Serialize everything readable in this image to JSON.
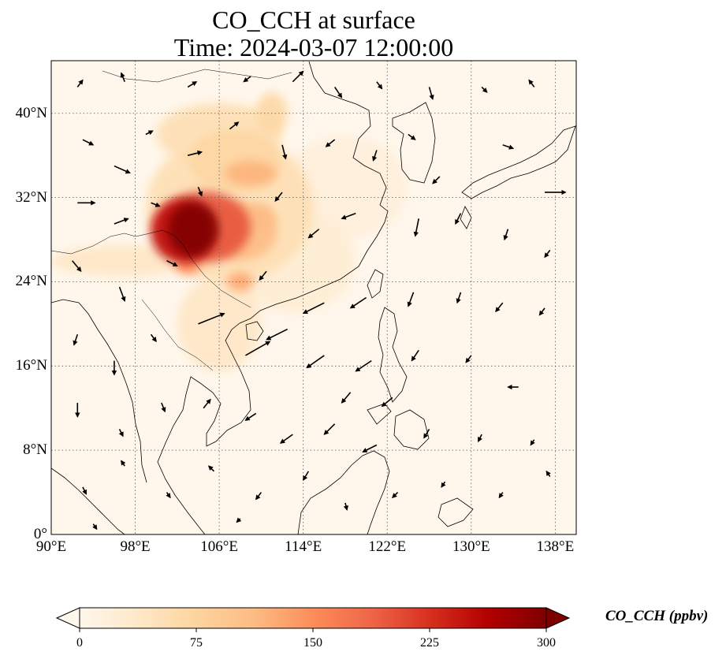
{
  "title": {
    "line1": "CO_CCH at surface",
    "line2": "Time: 2024-03-07 12:00:00"
  },
  "map": {
    "projection": "PlateCarree",
    "lon_range": [
      90,
      140
    ],
    "lat_range": [
      0,
      45
    ],
    "gridlines": "dotted",
    "x_ticks": [
      {
        "lon": 90,
        "label": "90°E"
      },
      {
        "lon": 98,
        "label": "98°E"
      },
      {
        "lon": 106,
        "label": "106°E"
      },
      {
        "lon": 114,
        "label": "114°E"
      },
      {
        "lon": 122,
        "label": "122°E"
      },
      {
        "lon": 130,
        "label": "130°E"
      },
      {
        "lon": 138,
        "label": "138°E"
      }
    ],
    "y_ticks": [
      {
        "lat": 0,
        "label": "0°"
      },
      {
        "lat": 8,
        "label": "8°N"
      },
      {
        "lat": 16,
        "label": "16°N"
      },
      {
        "lat": 24,
        "label": "24°N"
      },
      {
        "lat": 32,
        "label": "32°N"
      },
      {
        "lat": 40,
        "label": "40°N"
      }
    ],
    "colormap": "OrRd",
    "concentration_features": [
      {
        "lon": 103.5,
        "lat": 29.0,
        "value": 300,
        "rx": 2.4,
        "ry": 2.6
      },
      {
        "lon": 102.5,
        "lat": 28.8,
        "value": 250,
        "rx": 3.0,
        "ry": 3.0
      },
      {
        "lon": 104.5,
        "lat": 29.2,
        "value": 200,
        "rx": 4.5,
        "ry": 3.4
      },
      {
        "lon": 108.0,
        "lat": 28.8,
        "value": 110,
        "rx": 3.5,
        "ry": 2.8
      },
      {
        "lon": 109.0,
        "lat": 34.3,
        "value": 120,
        "rx": 2.5,
        "ry": 1.2
      },
      {
        "lon": 110.0,
        "lat": 30.0,
        "value": 110,
        "rx": 1.3,
        "ry": 1.3
      },
      {
        "lon": 107.5,
        "lat": 35.5,
        "value": 70,
        "rx": 4.5,
        "ry": 3.0
      },
      {
        "lon": 106.0,
        "lat": 38.0,
        "value": 55,
        "rx": 6.0,
        "ry": 3.0
      },
      {
        "lon": 107.0,
        "lat": 31.0,
        "value": 55,
        "rx": 8.0,
        "ry": 7.0
      },
      {
        "lon": 111.0,
        "lat": 40.0,
        "value": 70,
        "rx": 1.5,
        "ry": 2.0
      },
      {
        "lon": 103.0,
        "lat": 25.5,
        "value": 150,
        "rx": 1.2,
        "ry": 0.8
      },
      {
        "lon": 108.0,
        "lat": 24.0,
        "value": 130,
        "rx": 1.3,
        "ry": 0.9
      },
      {
        "lon": 106.0,
        "lat": 20.0,
        "value": 40,
        "rx": 4.0,
        "ry": 4.5
      },
      {
        "lon": 97.0,
        "lat": 26.0,
        "value": 40,
        "rx": 7.0,
        "ry": 1.5
      },
      {
        "lon": 113.0,
        "lat": 26.0,
        "value": 25,
        "rx": 6.0,
        "ry": 5.0
      },
      {
        "lon": 118.0,
        "lat": 33.0,
        "value": 18,
        "rx": 6.0,
        "ry": 5.0
      }
    ],
    "wind_vectors": [
      {
        "lon": 92.5,
        "lat": 42.5,
        "u": 0.3,
        "v": 0.4
      },
      {
        "lon": 97,
        "lat": 43,
        "u": -0.2,
        "v": 0.5
      },
      {
        "lon": 103,
        "lat": 42.5,
        "u": 0.5,
        "v": 0.3
      },
      {
        "lon": 109,
        "lat": 43.5,
        "u": -0.4,
        "v": -0.3
      },
      {
        "lon": 113,
        "lat": 43,
        "u": 0.6,
        "v": 0.6
      },
      {
        "lon": 117,
        "lat": 42.5,
        "u": 0.4,
        "v": -0.6
      },
      {
        "lon": 121,
        "lat": 43,
        "u": 0.3,
        "v": -0.4
      },
      {
        "lon": 126,
        "lat": 42.5,
        "u": 0.2,
        "v": -0.7
      },
      {
        "lon": 131,
        "lat": 42.5,
        "u": 0.3,
        "v": -0.3
      },
      {
        "lon": 136,
        "lat": 42.5,
        "u": -0.3,
        "v": 0.4
      },
      {
        "lon": 93,
        "lat": 37.5,
        "u": 0.6,
        "v": -0.3
      },
      {
        "lon": 96,
        "lat": 35,
        "u": 0.9,
        "v": -0.4
      },
      {
        "lon": 99,
        "lat": 38,
        "u": 0.4,
        "v": 0.2
      },
      {
        "lon": 103,
        "lat": 36,
        "u": 0.8,
        "v": 0.2
      },
      {
        "lon": 107,
        "lat": 38.5,
        "u": 0.5,
        "v": 0.4
      },
      {
        "lon": 112,
        "lat": 37,
        "u": 0.2,
        "v": -0.8
      },
      {
        "lon": 117,
        "lat": 37.5,
        "u": -0.5,
        "v": -0.4
      },
      {
        "lon": 121,
        "lat": 36.5,
        "u": -0.2,
        "v": -0.6
      },
      {
        "lon": 124,
        "lat": 38,
        "u": 0.4,
        "v": -0.3
      },
      {
        "lon": 127,
        "lat": 34,
        "u": -0.4,
        "v": -0.4
      },
      {
        "lon": 133,
        "lat": 37,
        "u": 0.6,
        "v": -0.2
      },
      {
        "lon": 137,
        "lat": 32.5,
        "u": 1.2,
        "v": 0.0
      },
      {
        "lon": 92.5,
        "lat": 31.5,
        "u": 1.0,
        "v": 0.0
      },
      {
        "lon": 96,
        "lat": 29.5,
        "u": 0.8,
        "v": 0.3
      },
      {
        "lon": 99.5,
        "lat": 31.5,
        "u": 0.5,
        "v": -0.2
      },
      {
        "lon": 104,
        "lat": 33,
        "u": 0.2,
        "v": -0.5
      },
      {
        "lon": 112,
        "lat": 32.5,
        "u": -0.4,
        "v": -0.5
      },
      {
        "lon": 115.5,
        "lat": 29,
        "u": -0.6,
        "v": -0.5
      },
      {
        "lon": 119,
        "lat": 30.5,
        "u": -0.8,
        "v": -0.3
      },
      {
        "lon": 125,
        "lat": 30,
        "u": -0.2,
        "v": -1.0
      },
      {
        "lon": 129,
        "lat": 30.5,
        "u": -0.3,
        "v": -0.6
      },
      {
        "lon": 133.5,
        "lat": 29,
        "u": -0.2,
        "v": -0.6
      },
      {
        "lon": 137.5,
        "lat": 27,
        "u": -0.3,
        "v": -0.4
      },
      {
        "lon": 92,
        "lat": 26,
        "u": 0.5,
        "v": -0.6
      },
      {
        "lon": 96.5,
        "lat": 23.5,
        "u": 0.3,
        "v": -0.8
      },
      {
        "lon": 101,
        "lat": 26,
        "u": 0.6,
        "v": -0.3
      },
      {
        "lon": 110.5,
        "lat": 25,
        "u": -0.4,
        "v": -0.5
      },
      {
        "lon": 116,
        "lat": 22,
        "u": -1.2,
        "v": -0.6
      },
      {
        "lon": 120,
        "lat": 22.5,
        "u": -0.9,
        "v": -0.6
      },
      {
        "lon": 124.5,
        "lat": 23,
        "u": -0.3,
        "v": -0.8
      },
      {
        "lon": 129,
        "lat": 23,
        "u": -0.2,
        "v": -0.6
      },
      {
        "lon": 133,
        "lat": 22,
        "u": -0.4,
        "v": -0.5
      },
      {
        "lon": 137,
        "lat": 21.5,
        "u": -0.3,
        "v": -0.4
      },
      {
        "lon": 92.5,
        "lat": 19,
        "u": -0.2,
        "v": -0.6
      },
      {
        "lon": 96,
        "lat": 16.5,
        "u": 0.0,
        "v": -0.8
      },
      {
        "lon": 99.5,
        "lat": 19,
        "u": 0.3,
        "v": -0.4
      },
      {
        "lon": 104,
        "lat": 20,
        "u": 1.5,
        "v": 0.6
      },
      {
        "lon": 108.5,
        "lat": 17,
        "u": 1.4,
        "v": 0.8
      },
      {
        "lon": 112.5,
        "lat": 19.5,
        "u": -1.2,
        "v": -0.6
      },
      {
        "lon": 116,
        "lat": 17,
        "u": -1.0,
        "v": -0.7
      },
      {
        "lon": 120.5,
        "lat": 16.5,
        "u": -0.9,
        "v": -0.6
      },
      {
        "lon": 125,
        "lat": 17.5,
        "u": -0.4,
        "v": -0.6
      },
      {
        "lon": 130,
        "lat": 17,
        "u": -0.3,
        "v": -0.4
      },
      {
        "lon": 134.5,
        "lat": 14,
        "u": -0.6,
        "v": 0.0
      },
      {
        "lon": 92.5,
        "lat": 12.5,
        "u": 0.0,
        "v": -0.8
      },
      {
        "lon": 96.5,
        "lat": 10,
        "u": 0.2,
        "v": -0.4
      },
      {
        "lon": 100.5,
        "lat": 12.5,
        "u": 0.2,
        "v": -0.5
      },
      {
        "lon": 104.5,
        "lat": 12,
        "u": 0.4,
        "v": 0.5
      },
      {
        "lon": 109.5,
        "lat": 11.5,
        "u": -0.6,
        "v": -0.4
      },
      {
        "lon": 113,
        "lat": 9.5,
        "u": -0.7,
        "v": -0.5
      },
      {
        "lon": 117,
        "lat": 10.5,
        "u": -0.6,
        "v": -0.6
      },
      {
        "lon": 121,
        "lat": 8.5,
        "u": -0.8,
        "v": -0.4
      },
      {
        "lon": 126,
        "lat": 10,
        "u": -0.3,
        "v": -0.5
      },
      {
        "lon": 131,
        "lat": 9.5,
        "u": -0.2,
        "v": -0.4
      },
      {
        "lon": 136,
        "lat": 9,
        "u": -0.2,
        "v": -0.3
      },
      {
        "lon": 93,
        "lat": 4.5,
        "u": 0.2,
        "v": -0.4
      },
      {
        "lon": 97,
        "lat": 6.5,
        "u": -0.2,
        "v": 0.3
      },
      {
        "lon": 101,
        "lat": 4,
        "u": 0.2,
        "v": -0.3
      },
      {
        "lon": 105.5,
        "lat": 6,
        "u": -0.3,
        "v": 0.3
      },
      {
        "lon": 110,
        "lat": 4,
        "u": -0.3,
        "v": -0.4
      },
      {
        "lon": 114.5,
        "lat": 6,
        "u": -0.3,
        "v": -0.5
      },
      {
        "lon": 118,
        "lat": 3,
        "u": 0.1,
        "v": -0.4
      },
      {
        "lon": 123,
        "lat": 4,
        "u": -0.3,
        "v": -0.3
      },
      {
        "lon": 127.5,
        "lat": 5,
        "u": -0.2,
        "v": -0.3
      },
      {
        "lon": 133,
        "lat": 4,
        "u": -0.2,
        "v": -0.3
      },
      {
        "lon": 137.5,
        "lat": 5.5,
        "u": -0.2,
        "v": 0.3
      },
      {
        "lon": 94,
        "lat": 1,
        "u": 0.2,
        "v": -0.3
      },
      {
        "lon": 108,
        "lat": 1.5,
        "u": -0.2,
        "v": -0.2
      },
      {
        "lon": 118.5,
        "lat": 13.5,
        "u": -0.5,
        "v": -0.6
      },
      {
        "lon": 122.5,
        "lat": 13,
        "u": -0.6,
        "v": -0.5
      }
    ]
  },
  "colorbar": {
    "label": "CO_CCH (ppbv)",
    "min": 0,
    "max": 300,
    "extend": "both",
    "ticks": [
      {
        "value": 0,
        "label": "0"
      },
      {
        "value": 75,
        "label": "75"
      },
      {
        "value": 150,
        "label": "150"
      },
      {
        "value": 225,
        "label": "225"
      },
      {
        "value": 300,
        "label": "300"
      }
    ],
    "color_stops": [
      "#fff7ec",
      "#fee8c8",
      "#fdd49e",
      "#fdbb84",
      "#fc8d59",
      "#ef6548",
      "#d7301f",
      "#b30000",
      "#7f0000"
    ]
  }
}
